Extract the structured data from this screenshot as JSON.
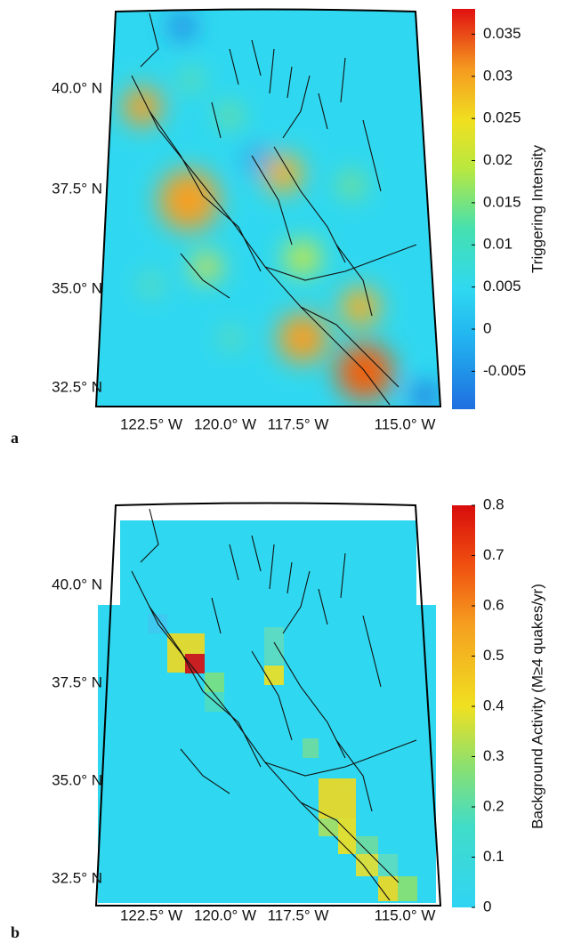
{
  "maps": [
    {
      "panel_label": "a",
      "lat_labels": [
        "40.0° N",
        "37.5° N",
        "35.0° N",
        "32.5° N"
      ],
      "lon_labels": [
        "122.5° W",
        "120.0° W",
        "117.5° W",
        "115.0° W"
      ],
      "colorbar": {
        "label": "Triggering Intensity",
        "clim": [
          -0.0095,
          0.038
        ],
        "ticks": [
          0.035,
          0.03,
          0.025,
          0.02,
          0.015,
          0.01,
          0.005,
          0,
          -0.005
        ]
      }
    },
    {
      "panel_label": "b",
      "lat_labels": [
        "40.0° N",
        "37.5° N",
        "35.0° N",
        "32.5° N"
      ],
      "lon_labels": [
        "122.5° W",
        "120.0° W",
        "117.5° W",
        "115.0° W"
      ],
      "colorbar": {
        "label": "Background Activity (M≥4 quakes/yr)",
        "clim": [
          0,
          0.8
        ],
        "ticks": [
          0.8,
          0.7,
          0.6,
          0.5,
          0.4,
          0.3,
          0.2,
          0.1,
          0
        ]
      }
    }
  ]
}
